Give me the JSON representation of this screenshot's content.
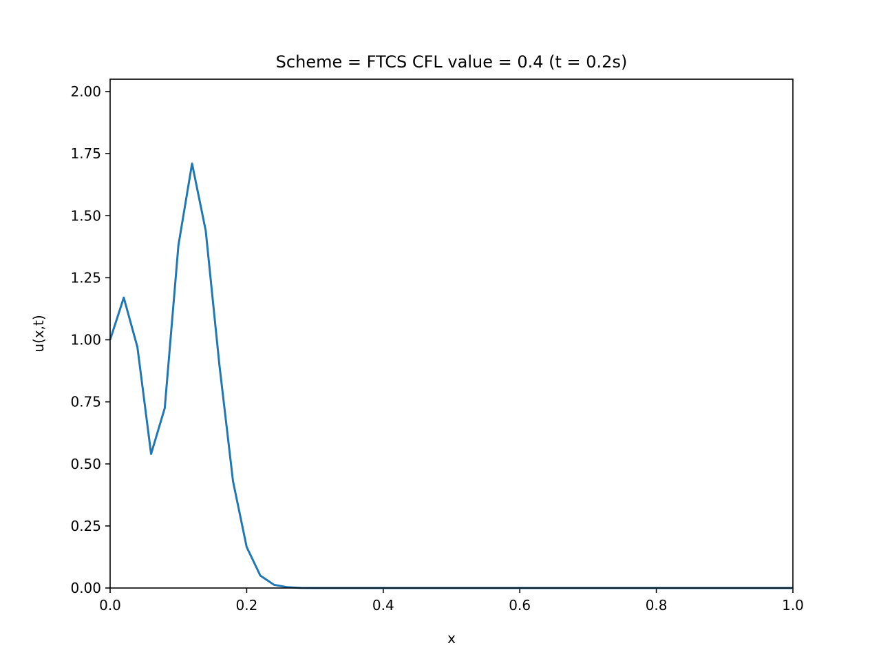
{
  "chart_data": {
    "type": "line",
    "title": "Scheme = FTCS CFL value = 0.4 (t = 0.2s)",
    "xlabel": "x",
    "ylabel": "u(x,t)",
    "xlim": [
      0.0,
      1.0
    ],
    "ylim": [
      0.0,
      2.05
    ],
    "xticks": [
      0.0,
      0.2,
      0.4,
      0.6,
      0.8,
      1.0
    ],
    "xtick_labels": [
      "0.0",
      "0.2",
      "0.4",
      "0.6",
      "0.8",
      "1.0"
    ],
    "yticks": [
      0.0,
      0.25,
      0.5,
      0.75,
      1.0,
      1.25,
      1.5,
      1.75,
      2.0
    ],
    "ytick_labels": [
      "0.00",
      "0.25",
      "0.50",
      "0.75",
      "1.00",
      "1.25",
      "1.50",
      "1.75",
      "2.00"
    ],
    "grid": false,
    "series": [
      {
        "color": "#1f77b4",
        "x": [
          0.0,
          0.02,
          0.04,
          0.06,
          0.08,
          0.1,
          0.12,
          0.14,
          0.16,
          0.18,
          0.2,
          0.22,
          0.24,
          0.26,
          0.28,
          0.3,
          0.32,
          0.34,
          0.36,
          0.38,
          0.4,
          0.42,
          0.44,
          0.46,
          0.48,
          0.5,
          0.52,
          0.54,
          0.56,
          0.58,
          0.6,
          0.62,
          0.64,
          0.66,
          0.68,
          0.7,
          0.72,
          0.74,
          0.76,
          0.78,
          0.8,
          0.82,
          0.84,
          0.86,
          0.88,
          0.9,
          0.92,
          0.94,
          0.96,
          0.98,
          1.0
        ],
        "y": [
          1.0,
          1.17,
          0.97,
          0.54,
          0.725,
          1.38,
          1.71,
          1.44,
          0.9,
          0.43,
          0.165,
          0.05,
          0.013,
          0.003,
          0.0005,
          0.0,
          0.0,
          0.0,
          0.0,
          0.0,
          0.0,
          0.0,
          0.0,
          0.0,
          0.0,
          0.0,
          0.0,
          0.0,
          0.0,
          0.0,
          0.0,
          0.0,
          0.0,
          0.0,
          0.0,
          0.0,
          0.0,
          0.0,
          0.0,
          0.0,
          0.0,
          0.0,
          0.0,
          0.0,
          0.0,
          0.0,
          0.0,
          0.0,
          0.0,
          0.0,
          0.0
        ]
      }
    ]
  }
}
